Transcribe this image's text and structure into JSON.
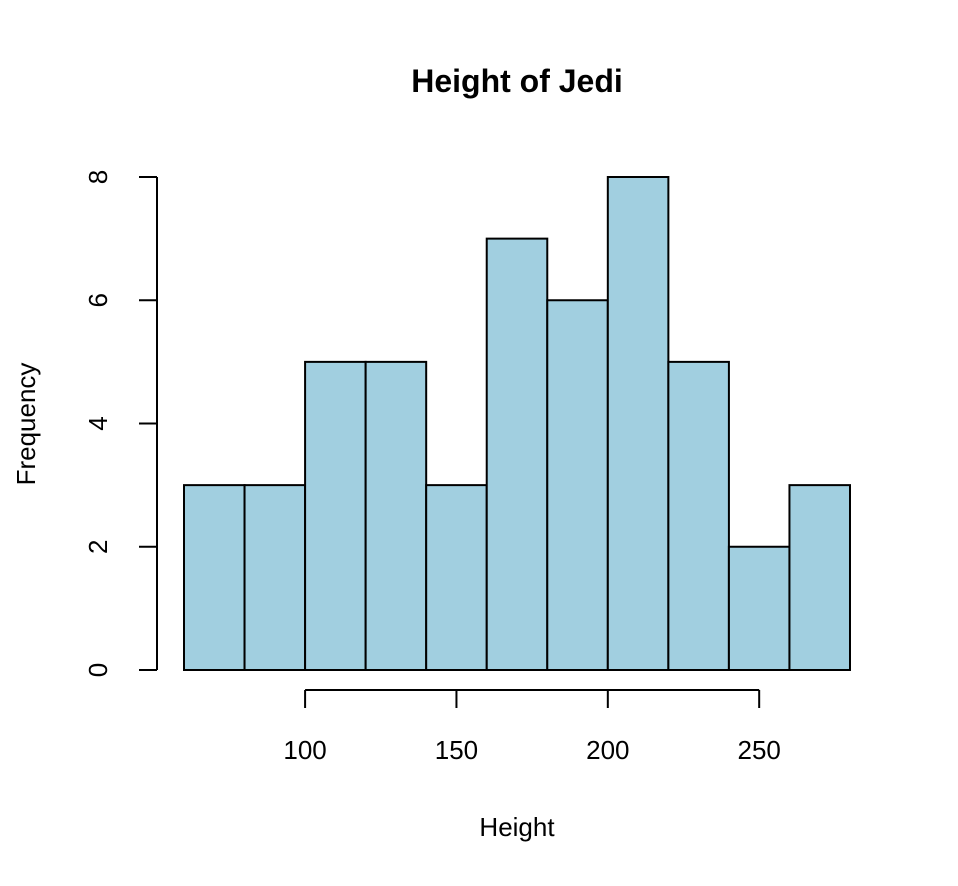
{
  "chart_data": {
    "type": "bar",
    "title": "Height of Jedi",
    "xlabel": "Height",
    "ylabel": "Frequency",
    "bins": [
      {
        "from": 60,
        "to": 80,
        "count": 3
      },
      {
        "from": 80,
        "to": 100,
        "count": 3
      },
      {
        "from": 100,
        "to": 120,
        "count": 5
      },
      {
        "from": 120,
        "to": 140,
        "count": 5
      },
      {
        "from": 140,
        "to": 160,
        "count": 3
      },
      {
        "from": 160,
        "to": 180,
        "count": 7
      },
      {
        "from": 180,
        "to": 200,
        "count": 6
      },
      {
        "from": 200,
        "to": 220,
        "count": 8
      },
      {
        "from": 220,
        "to": 240,
        "count": 5
      },
      {
        "from": 240,
        "to": 260,
        "count": 2
      },
      {
        "from": 260,
        "to": 280,
        "count": 3
      }
    ],
    "xlim": [
      60,
      280
    ],
    "ylim": [
      0,
      8
    ],
    "x_ticks": [
      100,
      150,
      200,
      250
    ],
    "y_ticks": [
      0,
      2,
      4,
      6,
      8
    ],
    "bar_color": "#a1cfe0",
    "grid": false,
    "legend": "none"
  }
}
